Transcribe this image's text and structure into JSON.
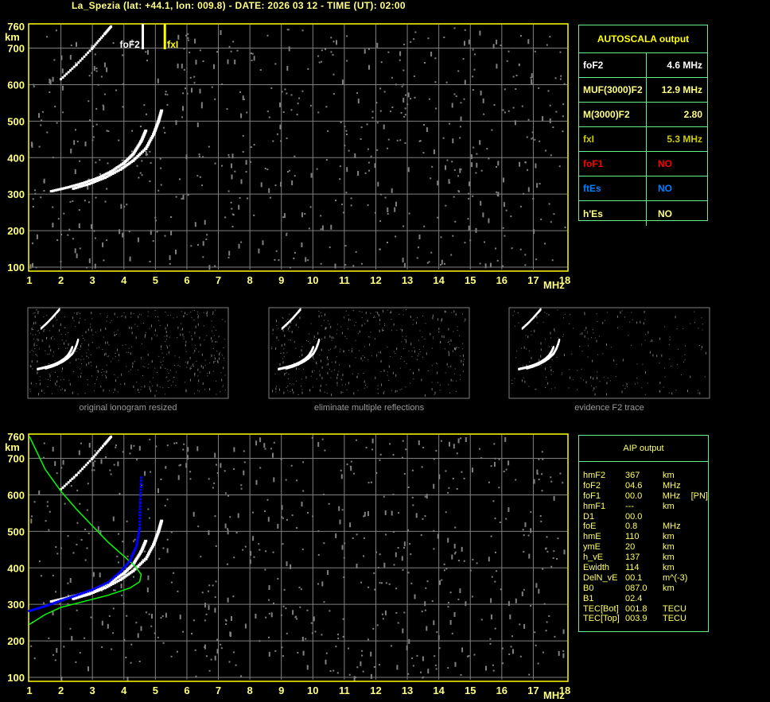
{
  "title": "La_Spezia (lat: +44.1, lon: 009.8) - DATE: 2026 03 12 - TIME (UT): 02:00",
  "colors": {
    "frame": "#ffff00",
    "grid": "#808080",
    "trace": "#ffffff",
    "noise": "#808080",
    "profile": "#00ff00",
    "aip_trace": "#0000ff",
    "table_border": "#66ee88"
  },
  "autoscala": {
    "header": "AUTOSCALA output",
    "rows": [
      {
        "key": "foF2",
        "value": "4.6 MHz",
        "color": "#ffffff"
      },
      {
        "key": "MUF(3000)F2",
        "value": "12.9 MHz",
        "color": "#ffff80"
      },
      {
        "key": "M(3000)F2",
        "value": "2.80",
        "color": "#ffff80"
      },
      {
        "key": "fxI",
        "value": "5.3 MHz",
        "color": "#cccc00"
      },
      {
        "key": "foF1",
        "value": "NO",
        "color": "#ff0000"
      },
      {
        "key": "ftEs",
        "value": "NO",
        "color": "#0080ff"
      },
      {
        "key": "h'Es",
        "value": "NO",
        "color": "#ffff80"
      }
    ]
  },
  "aip": {
    "header": "AIP output",
    "rows": [
      [
        "hmF2",
        "367",
        "km",
        ""
      ],
      [
        "foF2",
        "04.6",
        "MHz",
        ""
      ],
      [
        "foF1",
        "00.0",
        "MHz",
        "[PN]"
      ],
      [
        "hmF1",
        "---",
        "km",
        ""
      ],
      [
        "D1",
        "00.0",
        "",
        ""
      ],
      [
        "foE",
        "0.8",
        "MHz",
        ""
      ],
      [
        "hmE",
        "110",
        "km",
        ""
      ],
      [
        "ymE",
        "20",
        "km",
        ""
      ],
      [
        "h_vE",
        "137",
        "km",
        ""
      ],
      [
        "Ewidth",
        "114",
        "km",
        ""
      ],
      [
        "DelN_vE",
        "00.1",
        "m^(-3)",
        ""
      ],
      [
        "B0",
        "087.0",
        "km",
        ""
      ],
      [
        "B1",
        "02.4",
        "",
        ""
      ],
      [
        "TEC[Bot]",
        "001.8",
        "TECU",
        ""
      ],
      [
        "TEC[Top]",
        "003.9",
        "TECU",
        ""
      ]
    ]
  },
  "captions": [
    "original ionogram resized",
    "eliminate multiple reflections",
    "evidence F2 trace"
  ],
  "chart_data": [
    {
      "type": "scatter",
      "name_label": "top-ionogram",
      "xlabel": "MHz",
      "ylabel": "km",
      "xlim": [
        1,
        18
      ],
      "ylim": [
        100,
        760
      ],
      "x_ticks": [
        "1",
        "2",
        "3",
        "4",
        "5",
        "6",
        "7",
        "8",
        "9",
        "10",
        "11",
        "12",
        "13",
        "14",
        "15",
        "16",
        "17",
        "18"
      ],
      "y_ticks": [
        "100",
        "200",
        "300",
        "400",
        "500",
        "600",
        "700",
        "760"
      ],
      "grid": true,
      "markers": [
        {
          "label": "foF2",
          "freq": 4.6,
          "color": "#ffffff"
        },
        {
          "label": "fxI",
          "freq": 5.3,
          "color": "#ffff00"
        }
      ],
      "traces": {
        "o": [
          [
            1.7,
            308
          ],
          [
            2.2,
            318
          ],
          [
            2.7,
            330
          ],
          [
            3.2,
            345
          ],
          [
            3.6,
            362
          ],
          [
            4.0,
            385
          ],
          [
            4.3,
            410
          ],
          [
            4.55,
            445
          ],
          [
            4.7,
            475
          ]
        ],
        "x": [
          [
            2.4,
            315
          ],
          [
            2.9,
            328
          ],
          [
            3.4,
            345
          ],
          [
            3.9,
            368
          ],
          [
            4.3,
            392
          ],
          [
            4.7,
            425
          ],
          [
            4.95,
            465
          ],
          [
            5.1,
            500
          ],
          [
            5.2,
            530
          ]
        ],
        "second_hop": [
          [
            2.0,
            615
          ],
          [
            2.5,
            655
          ],
          [
            3.0,
            700
          ],
          [
            3.4,
            740
          ],
          [
            3.6,
            760
          ]
        ]
      }
    },
    {
      "type": "scatter",
      "name_label": "bottom-ionogram-with-profile",
      "xlabel": "MHz",
      "ylabel": "km",
      "xlim": [
        1,
        18
      ],
      "ylim": [
        100,
        760
      ],
      "x_ticks": [
        "1",
        "2",
        "3",
        "4",
        "5",
        "6",
        "7",
        "8",
        "9",
        "10",
        "11",
        "12",
        "13",
        "14",
        "15",
        "16",
        "17",
        "18"
      ],
      "y_ticks": [
        "100",
        "200",
        "300",
        "400",
        "500",
        "600",
        "700",
        "760"
      ],
      "grid": true,
      "profile": [
        [
          1.0,
          760
        ],
        [
          1.5,
          670
        ],
        [
          2.0,
          610
        ],
        [
          2.5,
          560
        ],
        [
          3.0,
          515
        ],
        [
          3.5,
          470
        ],
        [
          4.0,
          432
        ],
        [
          4.35,
          405
        ],
        [
          4.55,
          382
        ],
        [
          4.5,
          362
        ],
        [
          4.2,
          345
        ],
        [
          3.5,
          325
        ],
        [
          3.0,
          314
        ],
        [
          2.0,
          292
        ],
        [
          1.5,
          272
        ],
        [
          1.0,
          245
        ]
      ],
      "aip_trace": [
        [
          1.0,
          282
        ],
        [
          1.5,
          295
        ],
        [
          2.0,
          310
        ],
        [
          2.5,
          325
        ],
        [
          3.0,
          340
        ],
        [
          3.5,
          360
        ],
        [
          3.9,
          390
        ],
        [
          4.2,
          420
        ],
        [
          4.4,
          460
        ],
        [
          4.5,
          510
        ],
        [
          4.52,
          580
        ],
        [
          4.55,
          650
        ]
      ]
    }
  ]
}
